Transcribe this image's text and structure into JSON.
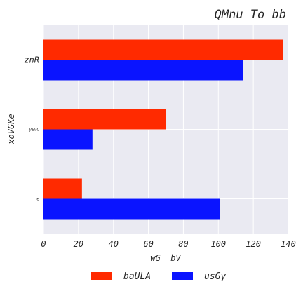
{
  "chart_data": {
    "type": "bar",
    "orientation": "horizontal",
    "title": "QMnu To bb",
    "xlabel": "wG  bV",
    "ylabel": "xoVGKe",
    "categories": [
      "znR",
      "yEVC",
      "e"
    ],
    "series": [
      {
        "name": "baULA",
        "color": "#ff2a00",
        "values": [
          137,
          70,
          22
        ]
      },
      {
        "name": "usGy",
        "color": "#0a14ff",
        "values": [
          114,
          28,
          101
        ]
      }
    ],
    "xlim": [
      0,
      140
    ],
    "xticks": [
      "0",
      "20",
      "40",
      "60",
      "80",
      "100",
      "120",
      "140"
    ],
    "grid": true,
    "legend_position": "bottom",
    "background": "#eaeaf2"
  }
}
